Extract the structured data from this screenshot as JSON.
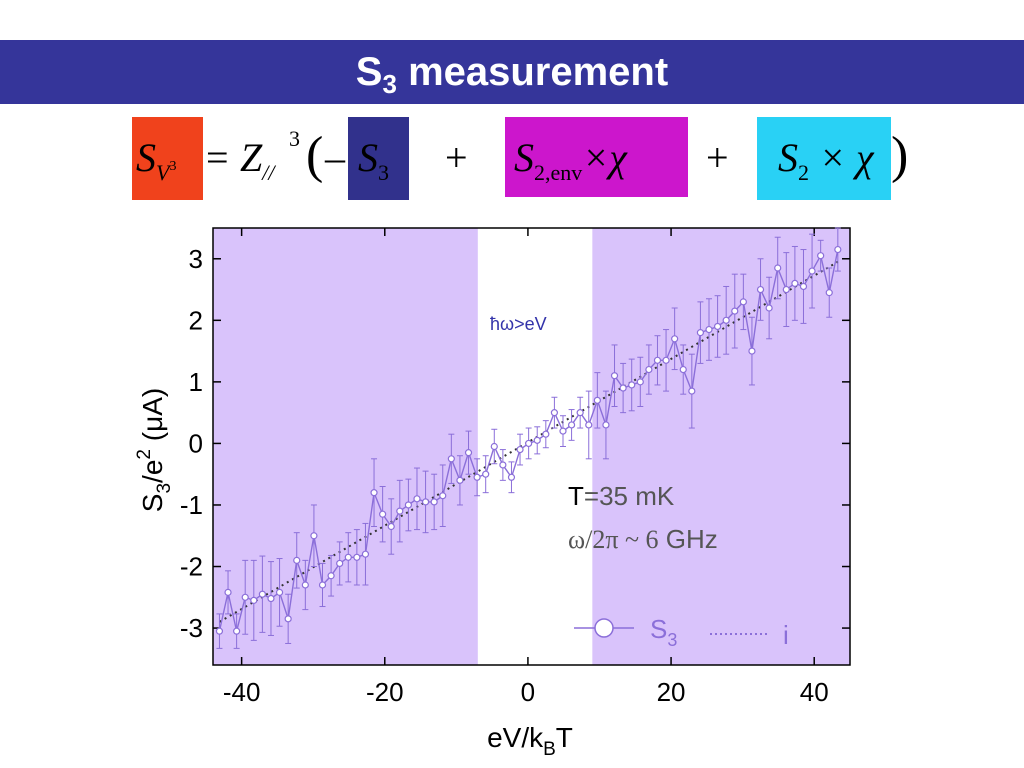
{
  "header": {
    "title_main": "S",
    "title_sub": "3",
    "title_rest": " measurement"
  },
  "equation": {
    "lhs_symbol": "S",
    "lhs_sub": "V",
    "lhs_sup": "3",
    "equals": "=",
    "z_symbol": "Z",
    "z_sub": "//",
    "z_sup": "3",
    "open_paren": "(",
    "minus": "–",
    "term1_symbol": "S",
    "term1_sub": "3",
    "plus1": "+",
    "term2_symbol": "S",
    "term2_sub": "2,env",
    "term2_rest": "×χ",
    "plus2": "+",
    "term3_symbol": "S",
    "term3_sub": "2",
    "term3_rest": " × χ",
    "close_paren": ")",
    "colors": {
      "lhs_box": "#f0421c",
      "term1_box": "#31318c",
      "term2_box": "#cc16cc",
      "term3_box": "#29d1f5"
    }
  },
  "chart_data": {
    "type": "scatter",
    "xlabel_main": "eV/k",
    "xlabel_sub": "B",
    "xlabel_end": "T",
    "ylabel": "S3/e2 (μA)",
    "ylabel_parts": {
      "s": "S",
      "sub": "3",
      "mid": "/e",
      "sup": "2",
      "end": " (μA)"
    },
    "xlim": [
      -44,
      45
    ],
    "ylim": [
      -3.6,
      3.5
    ],
    "x_ticks": [
      -40,
      -20,
      0,
      20,
      40
    ],
    "x_tick_labels": [
      "-40",
      "-20",
      "0",
      "20",
      "40"
    ],
    "y_ticks": [
      -3,
      -2,
      -1,
      0,
      1,
      2,
      3
    ],
    "y_tick_labels": [
      "-3",
      "-2",
      "-1",
      "0",
      "1",
      "2",
      "3"
    ],
    "shaded_regions": [
      [
        -44,
        -7
      ],
      [
        9,
        45
      ]
    ],
    "shade_color": "#d9c3fb",
    "series_color": "#8b6fd9",
    "annotations": {
      "regime": "ħω>eV",
      "temperature_T": "T",
      "temperature_rest": "=35 mK",
      "frequency": "ω/2π ~ 6",
      "frequency_unit": " GHz"
    },
    "legend": {
      "s3_main": "S",
      "s3_sub": "3",
      "i_label": "i"
    },
    "series": [
      {
        "name": "S3",
        "x": [
          -43.1,
          -41.9,
          -40.7,
          -39.5,
          -38.3,
          -37.1,
          -35.9,
          -34.7,
          -33.5,
          -32.3,
          -31.1,
          -29.9,
          -28.7,
          -27.5,
          -26.3,
          -25.1,
          -23.9,
          -22.7,
          -21.5,
          -20.3,
          -19.1,
          -17.9,
          -16.7,
          -15.5,
          -14.3,
          -13.1,
          -11.9,
          -10.7,
          -9.5,
          -8.3,
          -7.1,
          -5.9,
          -4.7,
          -3.5,
          -2.3,
          -1.1,
          0.1,
          1.3,
          2.5,
          3.7,
          4.9,
          6.1,
          7.3,
          8.5,
          9.7,
          10.9,
          12.1,
          13.3,
          14.5,
          15.7,
          16.9,
          18.1,
          19.3,
          20.5,
          21.7,
          22.9,
          24.1,
          25.3,
          26.5,
          27.7,
          28.9,
          30.1,
          31.3,
          32.5,
          33.7,
          34.9,
          36.1,
          37.3,
          38.5,
          39.7,
          40.9,
          42.1,
          43.3
        ],
        "y": [
          -3.05,
          -2.42,
          -3.05,
          -2.5,
          -2.55,
          -2.45,
          -2.52,
          -2.42,
          -2.85,
          -1.9,
          -2.3,
          -1.5,
          -2.3,
          -2.15,
          -1.95,
          -1.85,
          -1.85,
          -1.8,
          -0.8,
          -1.15,
          -1.35,
          -1.1,
          -1.0,
          -0.9,
          -0.95,
          -0.95,
          -0.85,
          -0.25,
          -0.6,
          -0.15,
          -0.55,
          -0.5,
          -0.05,
          -0.35,
          -0.55,
          -0.1,
          0.0,
          0.05,
          0.15,
          0.5,
          0.2,
          0.3,
          0.5,
          0.3,
          0.7,
          0.3,
          1.1,
          0.9,
          0.95,
          1.0,
          1.2,
          1.35,
          1.35,
          1.7,
          1.2,
          0.85,
          1.8,
          1.85,
          1.9,
          2.0,
          2.15,
          2.3,
          1.5,
          2.5,
          2.2,
          2.85,
          2.5,
          2.6,
          2.55,
          2.8,
          3.05,
          2.45,
          3.15
        ],
        "err": [
          0.28,
          0.35,
          0.28,
          0.6,
          0.65,
          0.62,
          0.6,
          0.55,
          0.4,
          0.45,
          0.4,
          0.5,
          0.35,
          0.33,
          0.35,
          0.4,
          0.45,
          0.5,
          0.55,
          0.45,
          0.45,
          0.5,
          0.42,
          0.5,
          0.5,
          0.45,
          0.5,
          0.4,
          0.4,
          0.35,
          0.3,
          0.3,
          0.28,
          0.25,
          0.25,
          0.25,
          0.25,
          0.22,
          0.22,
          0.25,
          0.25,
          0.25,
          0.25,
          0.55,
          0.45,
          0.55,
          0.5,
          0.4,
          0.42,
          0.4,
          0.4,
          0.4,
          0.5,
          0.5,
          0.4,
          0.6,
          0.5,
          0.5,
          0.5,
          0.55,
          0.6,
          0.45,
          0.55,
          0.5,
          0.5,
          0.5,
          0.6,
          0.6,
          0.6,
          0.6,
          0.25,
          0.4,
          0.35
        ]
      },
      {
        "name": "i",
        "type": "line",
        "style": "dotted",
        "x": [
          -43.1,
          43.3
        ],
        "y": [
          -2.9,
          2.95
        ]
      }
    ]
  }
}
